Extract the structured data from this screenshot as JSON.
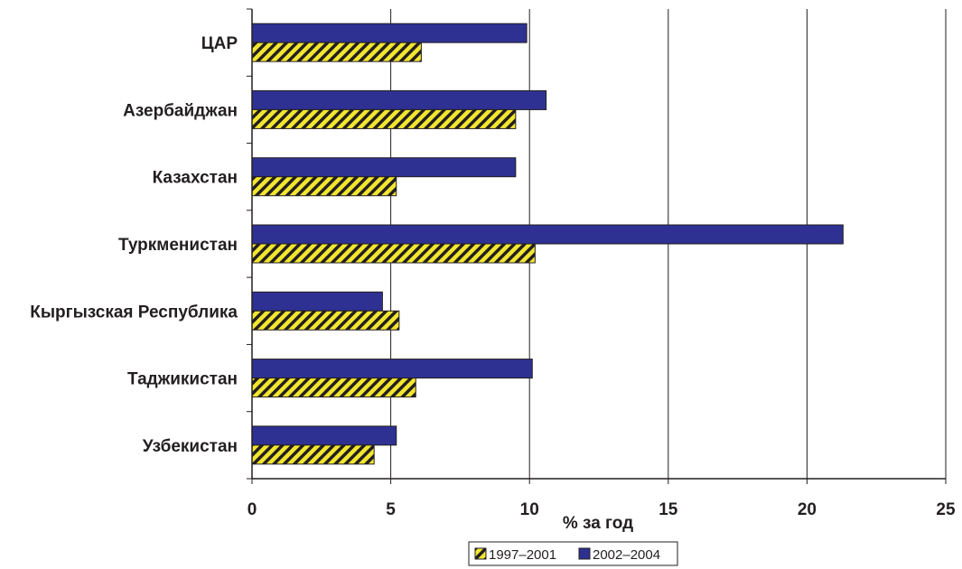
{
  "chart_data": {
    "type": "bar",
    "orientation": "horizontal",
    "categories": [
      "ЦАР",
      "Азербайджан",
      "Казахстан",
      "Туркменистан",
      "Кыргызская Республика",
      "Таджикистан",
      "Узбекистан"
    ],
    "series": [
      {
        "name": "1997–2001",
        "values": [
          6.1,
          9.5,
          5.2,
          10.2,
          5.3,
          5.9,
          4.4
        ],
        "color": "#f2e62f",
        "pattern": "diagonal-hatch"
      },
      {
        "name": "2002–2004",
        "values": [
          9.9,
          10.6,
          9.5,
          21.3,
          4.7,
          10.1,
          5.2
        ],
        "color": "#2e3192"
      }
    ],
    "xlabel": "% за год",
    "xlim": [
      0,
      25
    ],
    "xticks": [
      "0",
      "5",
      "10",
      "15",
      "20",
      "25"
    ],
    "grid": "vertical",
    "legend": "bottom-center"
  }
}
